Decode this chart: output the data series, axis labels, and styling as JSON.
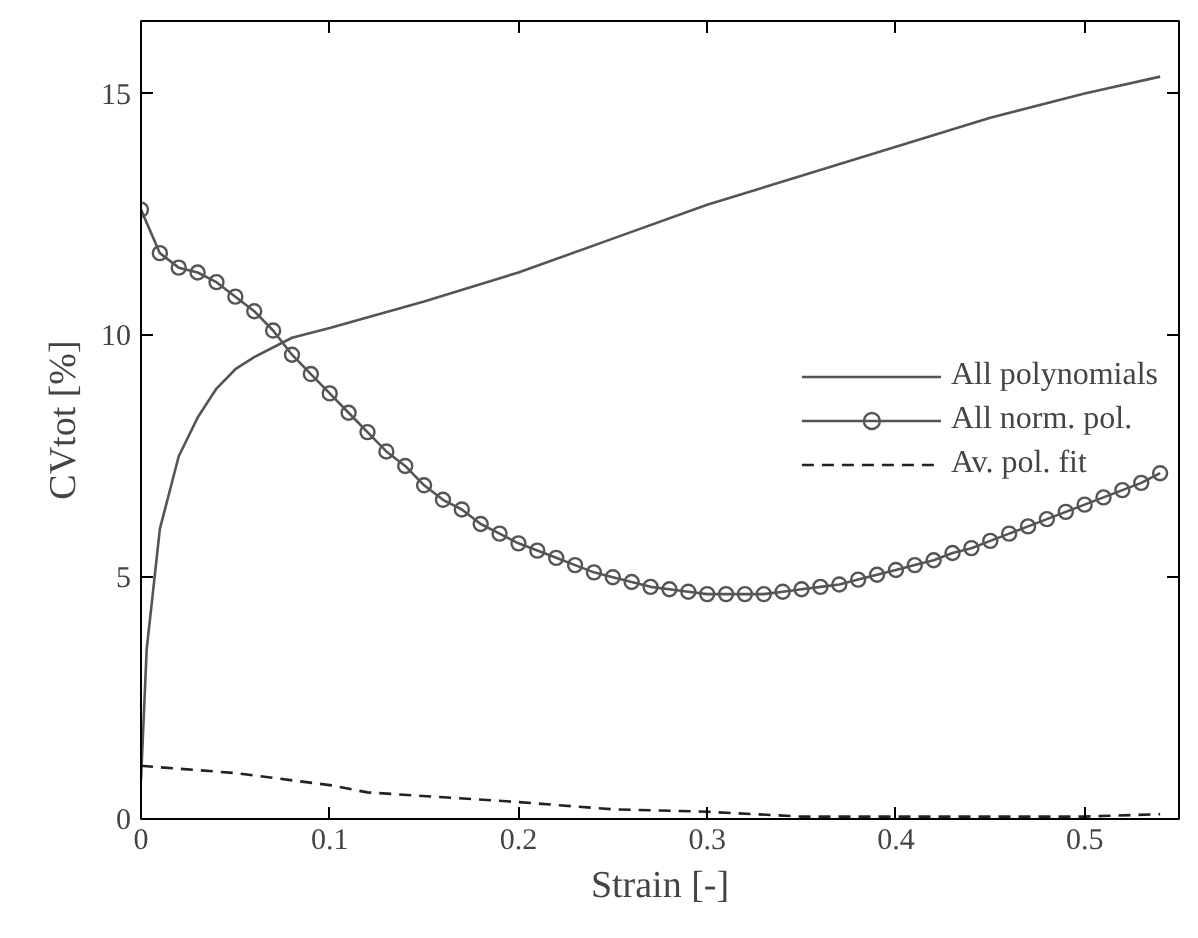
{
  "chart_data": {
    "type": "line",
    "xlabel": "Strain [-]",
    "ylabel": "CVtot [%]",
    "xlim": [
      0,
      0.55
    ],
    "ylim": [
      0,
      16.5
    ],
    "xticks": [
      0,
      0.1,
      0.2,
      0.3,
      0.4,
      0.5
    ],
    "yticks": [
      0,
      5,
      10,
      15
    ],
    "grid": false,
    "legend": "right",
    "series": [
      {
        "name": "All polynomials",
        "color": "#555555",
        "marker": "none",
        "line_style": "solid",
        "x": [
          0,
          0.003,
          0.01,
          0.02,
          0.03,
          0.04,
          0.05,
          0.06,
          0.08,
          0.1,
          0.15,
          0.2,
          0.25,
          0.3,
          0.35,
          0.4,
          0.45,
          0.5,
          0.54
        ],
        "values": [
          0.8,
          3.5,
          6,
          7.5,
          8.3,
          8.9,
          9.3,
          9.55,
          9.95,
          10.15,
          10.7,
          11.3,
          12.0,
          12.7,
          13.3,
          13.9,
          14.5,
          15.0,
          15.35
        ]
      },
      {
        "name": "All norm. pol.",
        "color": "#555555",
        "marker": "circle",
        "line_style": "solid",
        "x": [
          0,
          0.01,
          0.02,
          0.03,
          0.04,
          0.05,
          0.06,
          0.07,
          0.08,
          0.09,
          0.1,
          0.11,
          0.12,
          0.13,
          0.14,
          0.15,
          0.16,
          0.17,
          0.18,
          0.19,
          0.2,
          0.21,
          0.22,
          0.23,
          0.24,
          0.25,
          0.26,
          0.27,
          0.28,
          0.29,
          0.3,
          0.31,
          0.32,
          0.33,
          0.34,
          0.35,
          0.36,
          0.37,
          0.38,
          0.39,
          0.4,
          0.41,
          0.42,
          0.43,
          0.44,
          0.45,
          0.46,
          0.47,
          0.48,
          0.49,
          0.5,
          0.51,
          0.52,
          0.53,
          0.54
        ],
        "values": [
          12.6,
          11.7,
          11.4,
          11.3,
          11.1,
          10.8,
          10.5,
          10.1,
          9.6,
          9.2,
          8.8,
          8.4,
          8.0,
          7.6,
          7.3,
          6.9,
          6.6,
          6.4,
          6.1,
          5.9,
          5.7,
          5.55,
          5.4,
          5.25,
          5.1,
          5.0,
          4.9,
          4.8,
          4.75,
          4.7,
          4.65,
          4.65,
          4.65,
          4.65,
          4.7,
          4.75,
          4.8,
          4.85,
          4.95,
          5.05,
          5.15,
          5.25,
          5.35,
          5.5,
          5.6,
          5.75,
          5.9,
          6.05,
          6.2,
          6.35,
          6.5,
          6.65,
          6.8,
          6.95,
          7.15
        ]
      },
      {
        "name": "Av. pol. fit",
        "color": "#222222",
        "marker": "none",
        "line_style": "dashed",
        "x": [
          0,
          0.05,
          0.1,
          0.12,
          0.2,
          0.25,
          0.3,
          0.35,
          0.4,
          0.5,
          0.54
        ],
        "values": [
          1.1,
          0.95,
          0.7,
          0.55,
          0.35,
          0.2,
          0.15,
          0.05,
          0.05,
          0.05,
          0.1
        ]
      }
    ]
  }
}
